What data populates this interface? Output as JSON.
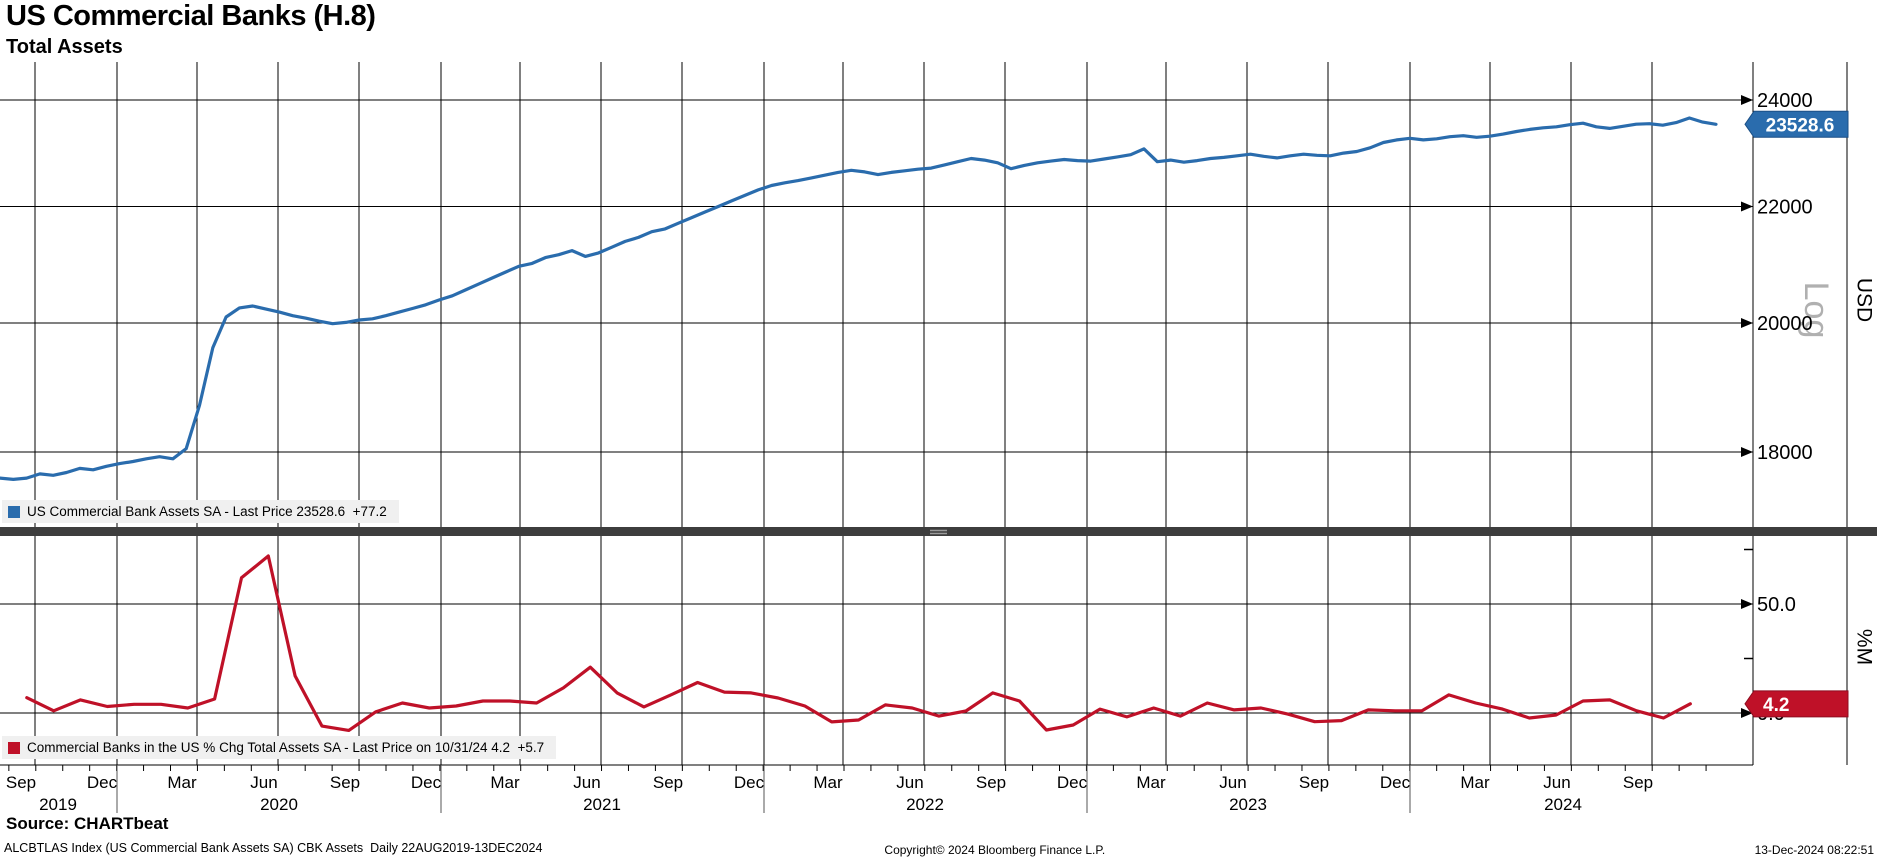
{
  "header": {
    "title": "US Commercial Banks (H.8)",
    "subtitle": "Total Assets"
  },
  "panels": {
    "top": {
      "legend": "US Commercial Bank Assets SA - Last Price 23528.6  +77.2",
      "badge": "23528.6",
      "unit": "USD",
      "scale_type": "Log",
      "y_ticks": [
        {
          "label": "24000",
          "value": 24000
        },
        {
          "label": "22000",
          "value": 22000
        },
        {
          "label": "20000",
          "value": 20000
        },
        {
          "label": "18000",
          "value": 18000
        }
      ]
    },
    "bottom": {
      "legend": "Commercial Banks in the US % Chg Total Assets SA - Last Price on 10/31/24 4.2  +5.7",
      "badge": "4.2",
      "unit": "%M",
      "y_ticks": [
        {
          "label": "50.0",
          "value": 50
        },
        {
          "label": "0.0",
          "value": 0
        }
      ],
      "minor_tick_values": [
        75,
        25
      ]
    }
  },
  "x_axis": {
    "months": [
      "Sep",
      "Dec",
      "Mar",
      "Jun",
      "Sep",
      "Dec",
      "Mar",
      "Jun",
      "Sep",
      "Dec",
      "Mar",
      "Jun",
      "Sep",
      "Dec",
      "Mar",
      "Jun",
      "Sep",
      "Dec",
      "Mar",
      "Jun",
      "Sep"
    ],
    "years": [
      "2019",
      "2020",
      "2021",
      "2022",
      "2023",
      "2024"
    ]
  },
  "footer": {
    "source": "Source: CHARTbeat",
    "index_line": "ALCBTLAS Index (US Commercial Bank Assets SA) CBK Assets  Daily 22AUG2019-13DEC2024",
    "copyright": "Copyright© 2024 Bloomberg Finance L.P.",
    "datetime": "13-Dec-2024 08:22:51"
  },
  "colors": {
    "blue": "#2a6cad",
    "blue_border": "#1b4f86",
    "red": "#bf1128",
    "red_border": "#8f0d20",
    "grid": "#000000",
    "divider": "#3d3d3d",
    "divider_grip": "#9a9a9a",
    "legend_bg": "#f0f0f0",
    "log_label": "#b0b0b0"
  },
  "chart_data": [
    {
      "type": "line",
      "name": "US Commercial Bank Assets SA",
      "panel": "top",
      "ylabel": "USD",
      "scale": "log",
      "x_range": [
        "Aug 2019",
        "Dec 2024"
      ],
      "axis_ticks": [
        18000,
        20000,
        22000,
        24000
      ],
      "last_price": 23528.6,
      "last_change": "+77.2",
      "values": [
        17620,
        17600,
        17620,
        17680,
        17660,
        17700,
        17760,
        17740,
        17790,
        17830,
        17860,
        17900,
        17930,
        17900,
        18050,
        18700,
        19600,
        20100,
        20250,
        20280,
        20230,
        20180,
        20120,
        20080,
        20030,
        19990,
        20010,
        20050,
        20070,
        20120,
        20180,
        20240,
        20300,
        20380,
        20450,
        20550,
        20650,
        20750,
        20850,
        20950,
        21000,
        21100,
        21150,
        21220,
        21120,
        21180,
        21280,
        21380,
        21450,
        21550,
        21600,
        21700,
        21800,
        21900,
        22000,
        22100,
        22200,
        22300,
        22380,
        22430,
        22470,
        22520,
        22570,
        22620,
        22660,
        22630,
        22580,
        22620,
        22650,
        22680,
        22700,
        22760,
        22820,
        22880,
        22850,
        22800,
        22690,
        22750,
        22800,
        22830,
        22860,
        22840,
        22830,
        22870,
        22910,
        22950,
        23060,
        22820,
        22850,
        22810,
        22840,
        22880,
        22900,
        22930,
        22960,
        22920,
        22890,
        22930,
        22960,
        22940,
        22930,
        22980,
        23010,
        23080,
        23180,
        23230,
        23260,
        23230,
        23250,
        23290,
        23310,
        23280,
        23300,
        23340,
        23390,
        23430,
        23460,
        23480,
        23520,
        23550,
        23480,
        23450,
        23490,
        23530,
        23540,
        23510,
        23560,
        23650,
        23570,
        23528.6
      ]
    },
    {
      "type": "line",
      "name": "Commercial Banks in the US % Chg Total Assets SA",
      "panel": "bottom",
      "ylabel": "%M",
      "scale": "linear",
      "frequency": "monthly",
      "x_start": "Aug 2019",
      "x_end": "Oct 2024",
      "axis_ticks": [
        0,
        50
      ],
      "last_price": 4.2,
      "last_date": "10/31/24",
      "last_change": "+5.7",
      "values": [
        7,
        1,
        6,
        3,
        4,
        4,
        2.3,
        6.4,
        62,
        72,
        17,
        -6,
        -8,
        0.5,
        4.6,
        2.3,
        3.2,
        5.5,
        5.5,
        4.6,
        11.5,
        21,
        9.2,
        2.8,
        8.3,
        14,
        9.6,
        9.2,
        6.9,
        3.2,
        -4.1,
        -3.2,
        3.7,
        2.3,
        -1.4,
        0.9,
        9.2,
        5.5,
        -7.8,
        -5.5,
        1.8,
        -1.8,
        2.3,
        -1.4,
        4.6,
        1.4,
        2.3,
        -0.5,
        -4,
        -3.5,
        1.4,
        1,
        1,
        8.3,
        4.6,
        1.8,
        -2.3,
        -0.9,
        5.5,
        6,
        1,
        -2.3,
        4.2
      ]
    }
  ]
}
